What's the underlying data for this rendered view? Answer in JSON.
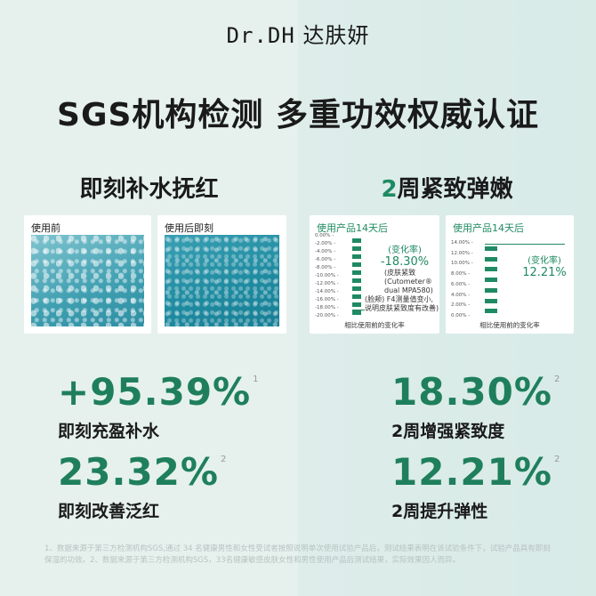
{
  "brand": {
    "logo": "Dr.DH",
    "name": "达肤妍"
  },
  "headline": "SGS机构检测  多重功效权威认证",
  "left": {
    "subtitle": "即刻补水抚红",
    "before_label": "使用前",
    "after_label": "使用后即刻",
    "stats": [
      {
        "value": "+95.39%",
        "sup": "1",
        "caption": "即刻充盈补水"
      },
      {
        "value": "23.32%",
        "sup": "2",
        "caption": "即刻改善泛红"
      }
    ]
  },
  "right": {
    "subtitle_num": "2",
    "subtitle_text": "周紧致弹嫩",
    "stats": [
      {
        "value": "18.30%",
        "sup": "2",
        "caption": "2周增强紧致度"
      },
      {
        "value": "12.21%",
        "sup": "2",
        "caption": "2周提升弹性"
      }
    ]
  },
  "chart_data": [
    {
      "type": "bar",
      "title": "使用产品14天后",
      "xlabel": "相比使用前的变化率",
      "tick_labels": [
        "0.00%",
        "-2.00%",
        "-4.00%",
        "-6.00%",
        "-8.00%",
        "-10.00%",
        "-12.00%",
        "-14.00%",
        "-16.00%",
        "-18.00%",
        "-20.00%"
      ],
      "values": [
        -18.3
      ],
      "ylim": [
        -20,
        0
      ],
      "annotation": {
        "label": "(变化率)",
        "value": "-18.30%"
      },
      "notes": [
        "(皮肤紧致",
        "(Cutometer®",
        "dual MPA580)",
        "F4测量值变小,",
        "说明皮肤紧致度有改善)"
      ],
      "note_prefix": "(脸颊)"
    },
    {
      "type": "bar",
      "title": "使用产品14天后",
      "xlabel": "相比使用前的变化率",
      "tick_labels": [
        "14.00%",
        "12.00%",
        "10.00%",
        "8.00%",
        "6.00%",
        "4.00%",
        "2.00%",
        "0.00%"
      ],
      "values": [
        12.21
      ],
      "ylim": [
        0,
        14
      ],
      "annotation": {
        "label": "(变化率)",
        "value": "12.21%"
      }
    }
  ],
  "footnote": "1、数据来源于第三方检测机构SGS,通过 34 名健康男性和女性受试者按照说明单次使用试验产品后，测试结果表明在该试验条件下，试验产品具有即刻保湿的功效。2、数据来源于第三方检测机构SGS，33名健康敏感皮肤女性和男性使用产品后测试结果，实际效果因人而异。"
}
